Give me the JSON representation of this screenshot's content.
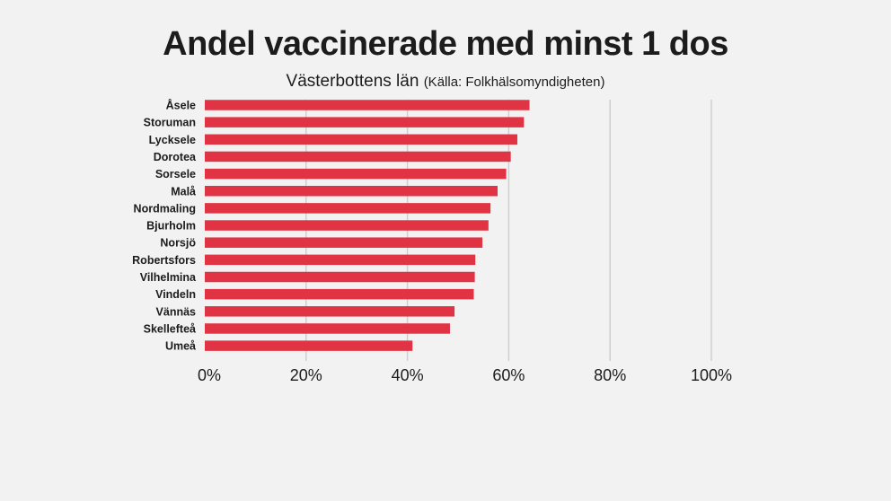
{
  "chart_data": {
    "type": "bar",
    "orientation": "horizontal",
    "title": "Andel vaccinerade med minst 1 dos",
    "subtitle": "Västerbottens län",
    "source": "(Källa: Folkhälsomyndigheten)",
    "categories": [
      "Åsele",
      "Storuman",
      "Lycksele",
      "Dorotea",
      "Sorsele",
      "Malå",
      "Nordmaling",
      "Bjurholm",
      "Norsjö",
      "Robertsfors",
      "Vilhelmina",
      "Vindeln",
      "Vännäs",
      "Skellefteå",
      "Umeå"
    ],
    "values": [
      64.1,
      63.0,
      61.7,
      60.4,
      59.5,
      57.8,
      56.4,
      56.0,
      54.8,
      53.4,
      53.3,
      53.1,
      49.3,
      48.4,
      41.0
    ],
    "unit": "%",
    "xlim": [
      0,
      100
    ],
    "xticks": [
      0,
      20,
      40,
      60,
      80,
      100
    ],
    "xtick_labels": [
      "0%",
      "20%",
      "40%",
      "60%",
      "80%",
      "100%"
    ],
    "grid": "vertical",
    "legend": "none",
    "bar_color": "#e03444"
  }
}
